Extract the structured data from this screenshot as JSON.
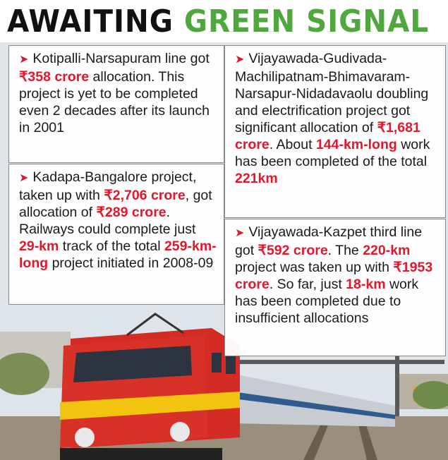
{
  "headline": {
    "part1": "AWAITING",
    "part2": "GREEN SIGNAL"
  },
  "boxes": [
    {
      "arrow": "➤",
      "t1": "Kotipalli-Narsapuram line got ",
      "h1": "₹358 crore",
      "t2": " allocation. This project is yet to be completed even 2 decades after its launch in 2001"
    },
    {
      "arrow": "➤",
      "t1": "Kadapa-Bangalore project, taken up with ",
      "h1": "₹2,706 crore",
      "t2": ", got allocation of ",
      "h2": "₹289 crore",
      "t3": ". Railways could complete just ",
      "h3": "29-km",
      "t4": " track of the total ",
      "h4": "259-km-long",
      "t5": " project initiated in 2008-09"
    },
    {
      "arrow": "➤",
      "t1": "Vijayawada-Gudivada-Machilipatnam-Bhimavaram-Narsapur-Nidadavaolu doubling and electrification project got significant allocation of ",
      "h1": "₹1,681 crore",
      "t2": ". About ",
      "h2": "144-km-long",
      "t3": " work has been completed of the total ",
      "h3": "221km",
      "t4": ""
    },
    {
      "arrow": "➤",
      "t1": "Vijayawada-Kazpet third line got ",
      "h1": "₹592 crore",
      "t2": ". The ",
      "h2": "220-km",
      "t3": " project was taken up with ",
      "h3": "₹1953 crore",
      "t4": ". So far, just ",
      "h4": "18-km",
      "t5": " work has been completed due to insufficient allocations"
    }
  ],
  "colors": {
    "highlight": "#e3162b",
    "green": "#4fa83d",
    "sky": "#dde4ea",
    "loco_red": "#d52b25",
    "loco_yellow": "#f2c40f"
  }
}
